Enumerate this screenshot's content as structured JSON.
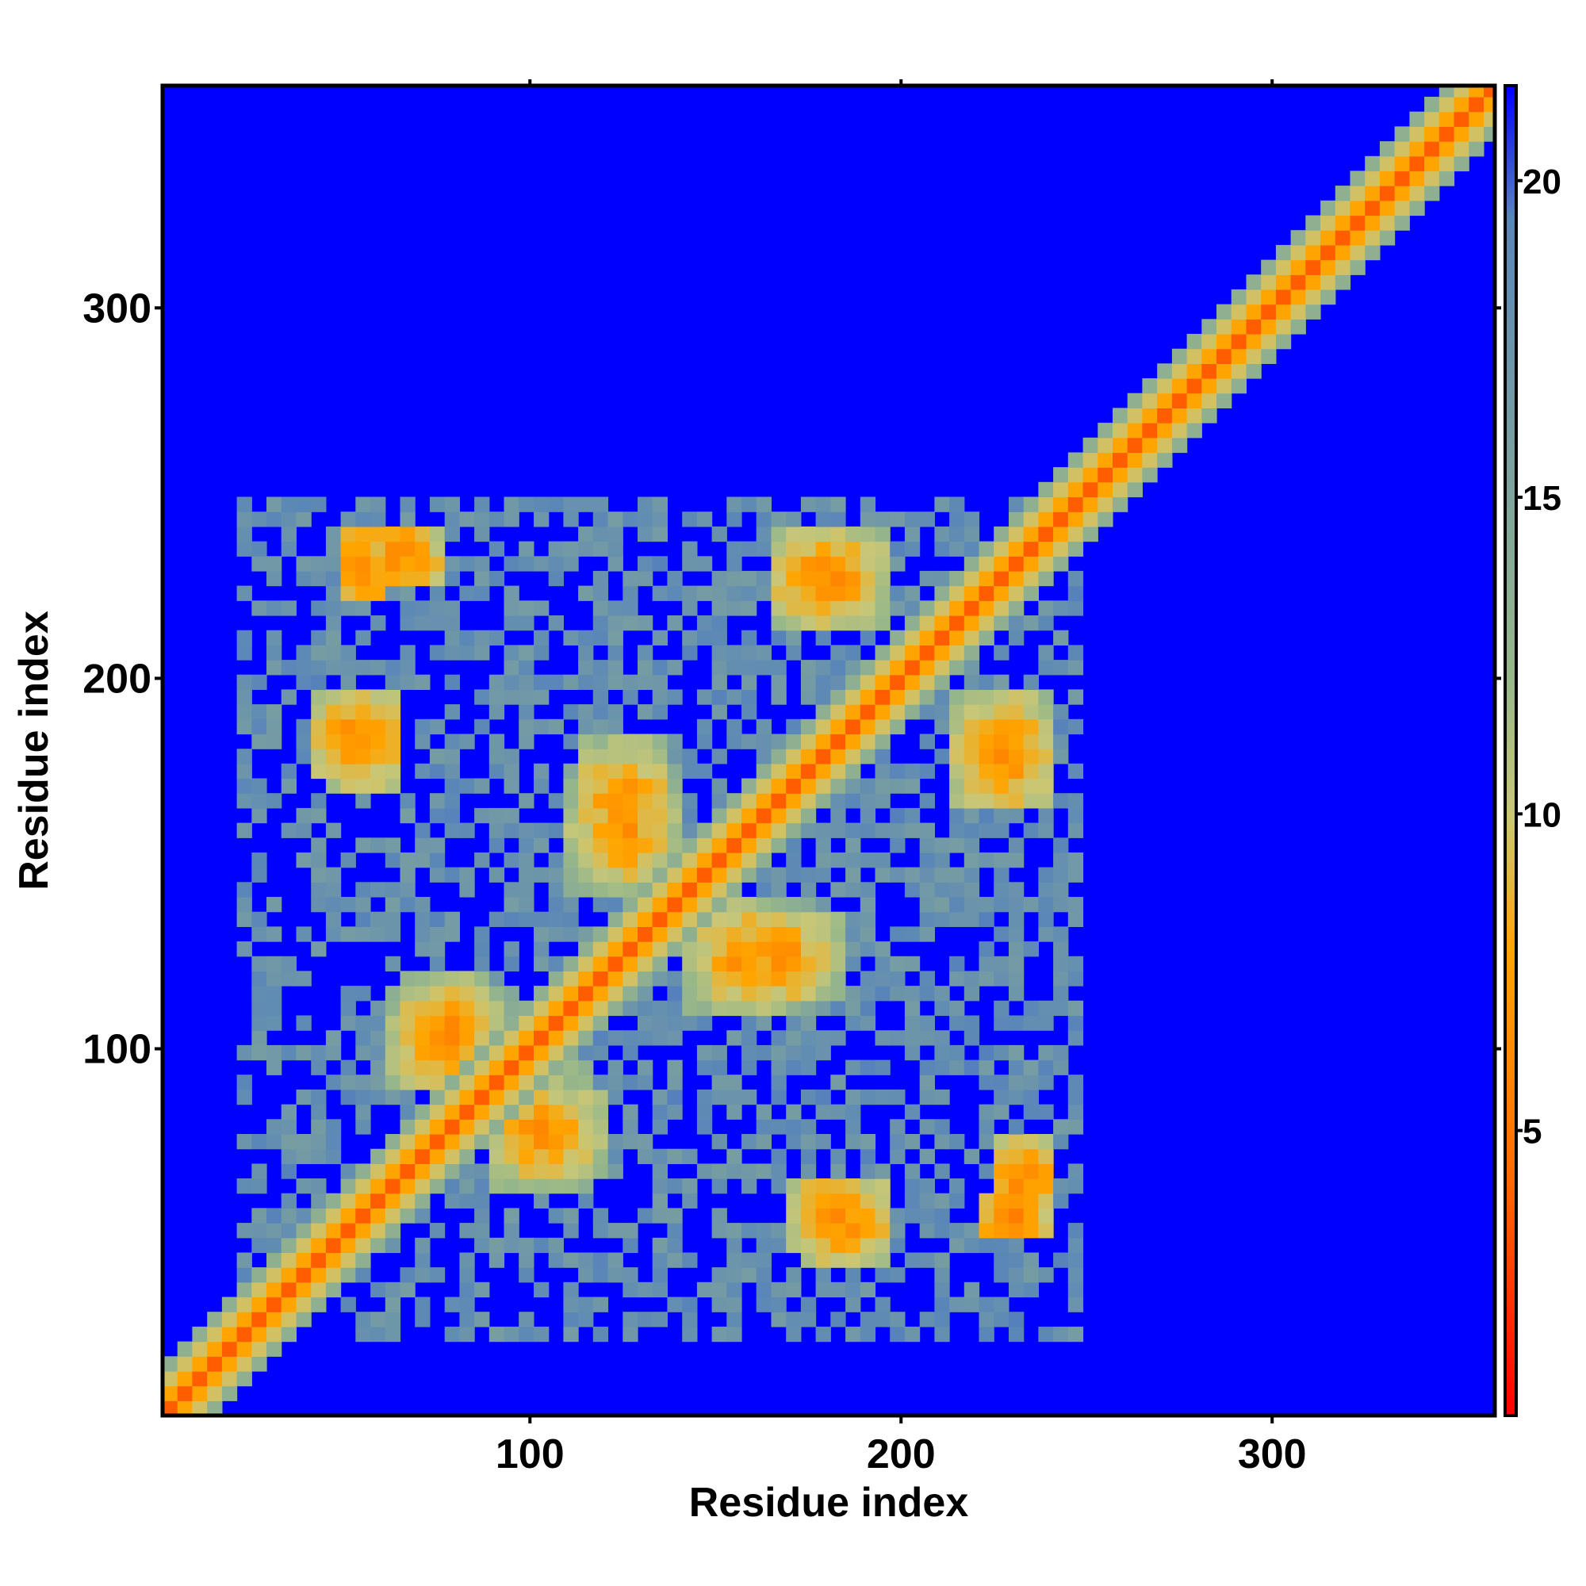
{
  "chart_data": {
    "type": "heatmap",
    "title": "",
    "xlabel": "Residue index",
    "ylabel": "Residue index",
    "xlim": [
      1,
      360
    ],
    "ylim": [
      1,
      360
    ],
    "x_ticks": [
      100,
      200,
      300
    ],
    "y_ticks": [
      100,
      200,
      300
    ],
    "x_tick_labels": [
      "100",
      "200",
      "300"
    ],
    "y_tick_labels": [
      "100",
      "200",
      "300"
    ],
    "colorbar": {
      "range": [
        0.5,
        21.5
      ],
      "ticks": [
        5,
        10,
        15,
        20
      ],
      "tick_labels": [
        "5",
        "10",
        "15",
        "20"
      ],
      "colors": [
        "#ff0000",
        "#ff6a00",
        "#ffa500",
        "#c9c777",
        "#98b889",
        "#5a86b8",
        "#0000ff"
      ],
      "stops": [
        0.0,
        0.18,
        0.35,
        0.45,
        0.55,
        0.9,
        1.0
      ],
      "upper_clip_color": "#0000ff",
      "clip_value": 21
    },
    "grid": false,
    "matrix_description_values": {
      "residue_count": 360,
      "diagonal_value": 3.8,
      "background_value": 21,
      "secondary_contact_bands": [
        {
          "x_range": [
            45,
            65
          ],
          "y_range": [
            170,
            195
          ],
          "min_value": 5
        },
        {
          "x_range": [
            55,
            75
          ],
          "y_range": [
            225,
            240
          ],
          "min_value": 5
        },
        {
          "x_range": [
            60,
            95
          ],
          "y_range": [
            90,
            115
          ],
          "min_value": 5
        },
        {
          "x_range": [
            90,
            120
          ],
          "y_range": [
            65,
            90
          ],
          "min_value": 5
        },
        {
          "x_range": [
            110,
            140
          ],
          "y_range": [
            140,
            175
          ],
          "min_value": 5
        },
        {
          "x_range": [
            150,
            185
          ],
          "y_range": [
            115,
            135
          ],
          "min_value": 5
        },
        {
          "x_range": [
            165,
            190
          ],
          "y_range": [
            215,
            240
          ],
          "min_value": 5
        },
        {
          "x_range": [
            175,
            195
          ],
          "y_range": [
            40,
            65
          ],
          "min_value": 5
        },
        {
          "x_range": [
            215,
            240
          ],
          "y_range": [
            170,
            195
          ],
          "min_value": 5
        },
        {
          "x_range": [
            220,
            240
          ],
          "y_range": [
            50,
            60
          ],
          "min_value": 5
        }
      ]
    }
  }
}
